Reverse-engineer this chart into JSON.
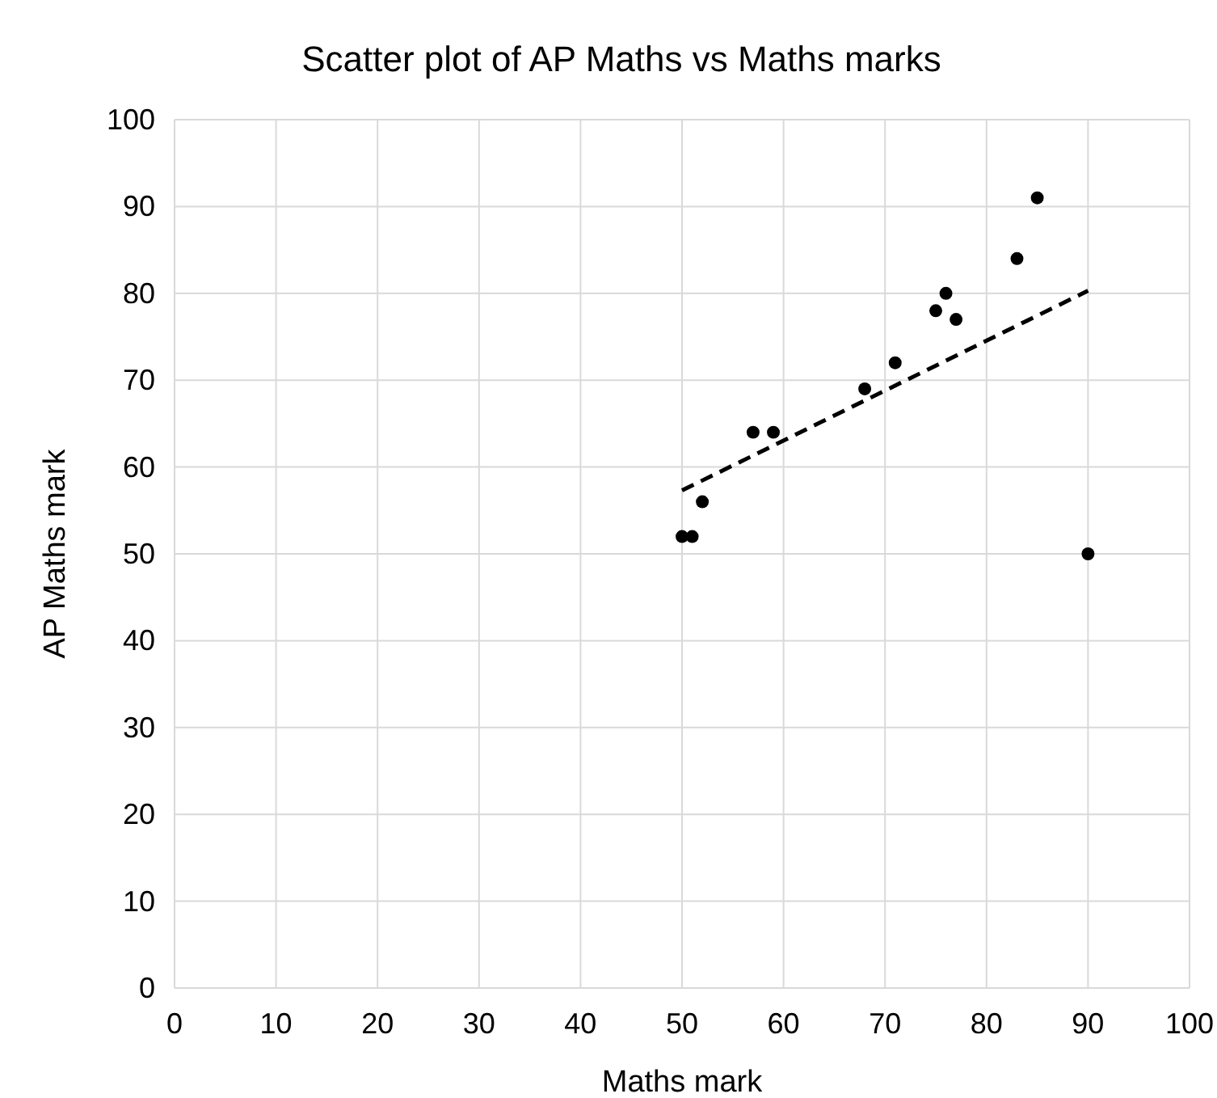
{
  "chart_data": {
    "type": "scatter",
    "title": "Scatter plot of AP Maths vs Maths marks",
    "xlabel": "Maths mark",
    "ylabel": "AP Maths mark",
    "xlim": [
      0,
      100
    ],
    "xticks": [
      0,
      10,
      20,
      30,
      40,
      50,
      60,
      70,
      80,
      90,
      100
    ],
    "ylim": [
      0,
      100
    ],
    "yticks": [
      0,
      10,
      20,
      30,
      40,
      50,
      60,
      70,
      80,
      90,
      100
    ],
    "grid": true,
    "series": [
      {
        "color": "#000000",
        "marker": "circle",
        "x": [
          50,
          51,
          52,
          57,
          59,
          68,
          71,
          75,
          76,
          77,
          83,
          85,
          90
        ],
        "values": [
          52,
          52,
          56,
          64,
          64,
          69,
          72,
          78,
          80,
          77,
          84,
          91,
          50
        ]
      },
      {
        "type": "line",
        "color": "#000000",
        "line_style": "dashed",
        "x": [
          50,
          90
        ],
        "values": [
          57.3,
          80.3
        ]
      }
    ]
  }
}
